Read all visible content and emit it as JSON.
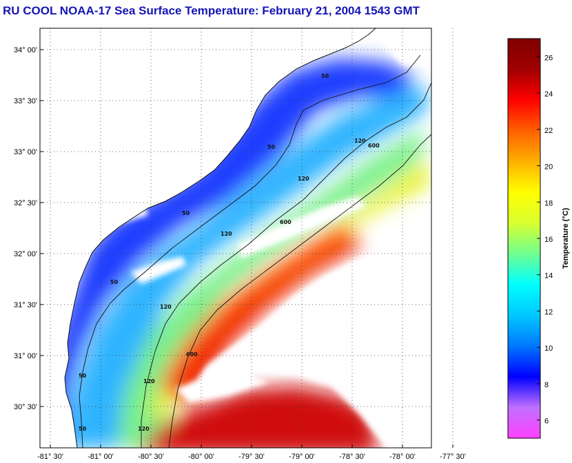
{
  "title": "RU COOL  NOAA-17  Sea Surface Temperature:  February 21, 2004 1543 GMT",
  "map": {
    "lat_ticks": [
      "34° 00'",
      "33° 30'",
      "33° 00'",
      "32° 30'",
      "32° 00'",
      "31° 30'",
      "31° 00'",
      "30° 30'"
    ],
    "lon_ticks": [
      "-81° 30'",
      "-81° 00'",
      "-80° 30'",
      "-80° 00'",
      "-79° 30'",
      "-79° 00'",
      "-78° 30'",
      "-78° 00'",
      "-77° 30'"
    ],
    "lat_values": [
      34.0,
      33.5,
      33.0,
      32.5,
      32.0,
      31.5,
      31.0,
      30.5
    ],
    "lon_values": [
      -81.5,
      -81.0,
      -80.5,
      -80.0,
      -79.5,
      -79.0,
      -78.5,
      -78.0,
      -77.5
    ],
    "grid": "dotted",
    "contour_labels": [
      "50",
      "50",
      "50",
      "50",
      "50",
      "50",
      "120",
      "120",
      "120",
      "120",
      "120",
      "120",
      "600",
      "600",
      "600"
    ]
  },
  "colorbar": {
    "label": "Temperature (°C)",
    "ticks": [
      "6",
      "8",
      "10",
      "12",
      "14",
      "16",
      "18",
      "20",
      "22",
      "24",
      "26"
    ],
    "tick_values": [
      6,
      8,
      10,
      12,
      14,
      16,
      18,
      20,
      22,
      24,
      26
    ],
    "range": [
      5,
      27
    ],
    "colors": [
      "#ff40ff",
      "#c070ff",
      "#0000ff",
      "#0078ff",
      "#00c8ff",
      "#00ffff",
      "#70ff90",
      "#d8ff30",
      "#ffff00",
      "#ffb000",
      "#ff6000",
      "#ff0000",
      "#a00000",
      "#800000"
    ]
  }
}
